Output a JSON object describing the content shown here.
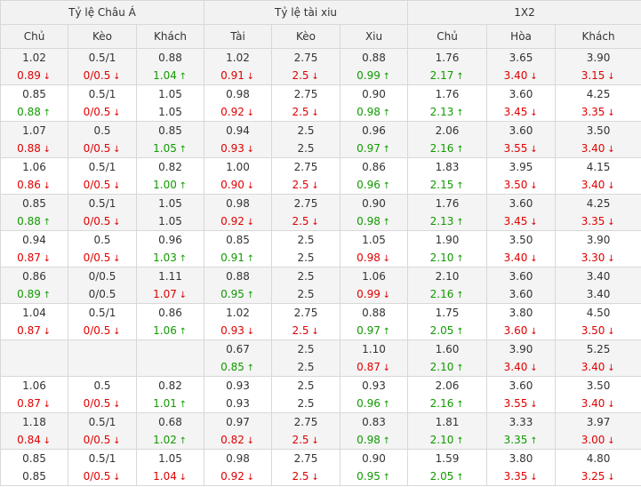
{
  "groups": [
    "Tỷ lệ Châu Á",
    "Tỷ lệ tài xiu",
    "1X2"
  ],
  "columns": [
    "Chủ",
    "Kèo",
    "Khách",
    "Tài",
    "Kèo",
    "Xiu",
    "Chủ",
    "Hòa",
    "Khách"
  ],
  "rows": [
    [
      [
        "1.02",
        "0.89",
        "d"
      ],
      [
        "0.5/1",
        "0/0.5",
        "d"
      ],
      [
        "0.88",
        "1.04",
        "u"
      ],
      [
        "1.02",
        "0.91",
        "d"
      ],
      [
        "2.75",
        "2.5",
        "d"
      ],
      [
        "0.88",
        "0.99",
        "u"
      ],
      [
        "1.76",
        "2.17",
        "u"
      ],
      [
        "3.65",
        "3.40",
        "d"
      ],
      [
        "3.90",
        "3.15",
        "d"
      ]
    ],
    [
      [
        "0.85",
        "0.88",
        "u"
      ],
      [
        "0.5/1",
        "0/0.5",
        "d"
      ],
      [
        "1.05",
        "1.05",
        ""
      ],
      [
        "0.98",
        "0.92",
        "d"
      ],
      [
        "2.75",
        "2.5",
        "d"
      ],
      [
        "0.90",
        "0.98",
        "u"
      ],
      [
        "1.76",
        "2.13",
        "u"
      ],
      [
        "3.60",
        "3.45",
        "d"
      ],
      [
        "4.25",
        "3.35",
        "d"
      ]
    ],
    [
      [
        "1.07",
        "0.88",
        "d"
      ],
      [
        "0.5",
        "0/0.5",
        "d"
      ],
      [
        "0.85",
        "1.05",
        "u"
      ],
      [
        "0.94",
        "0.93",
        "d"
      ],
      [
        "2.5",
        "2.5",
        ""
      ],
      [
        "0.96",
        "0.97",
        "u"
      ],
      [
        "2.06",
        "2.16",
        "u"
      ],
      [
        "3.60",
        "3.55",
        "d"
      ],
      [
        "3.50",
        "3.40",
        "d"
      ]
    ],
    [
      [
        "1.06",
        "0.86",
        "d"
      ],
      [
        "0.5/1",
        "0/0.5",
        "d"
      ],
      [
        "0.82",
        "1.00",
        "u"
      ],
      [
        "1.00",
        "0.90",
        "d"
      ],
      [
        "2.75",
        "2.5",
        "d"
      ],
      [
        "0.86",
        "0.96",
        "u"
      ],
      [
        "1.83",
        "2.15",
        "u"
      ],
      [
        "3.95",
        "3.50",
        "d"
      ],
      [
        "4.15",
        "3.40",
        "d"
      ]
    ],
    [
      [
        "0.85",
        "0.88",
        "u"
      ],
      [
        "0.5/1",
        "0/0.5",
        "d"
      ],
      [
        "1.05",
        "1.05",
        ""
      ],
      [
        "0.98",
        "0.92",
        "d"
      ],
      [
        "2.75",
        "2.5",
        "d"
      ],
      [
        "0.90",
        "0.98",
        "u"
      ],
      [
        "1.76",
        "2.13",
        "u"
      ],
      [
        "3.60",
        "3.45",
        "d"
      ],
      [
        "4.25",
        "3.35",
        "d"
      ]
    ],
    [
      [
        "0.94",
        "0.87",
        "d"
      ],
      [
        "0.5",
        "0/0.5",
        "d"
      ],
      [
        "0.96",
        "1.03",
        "u"
      ],
      [
        "0.85",
        "0.91",
        "u"
      ],
      [
        "2.5",
        "2.5",
        ""
      ],
      [
        "1.05",
        "0.98",
        "d"
      ],
      [
        "1.90",
        "2.10",
        "u"
      ],
      [
        "3.50",
        "3.40",
        "d"
      ],
      [
        "3.90",
        "3.30",
        "d"
      ]
    ],
    [
      [
        "0.86",
        "0.89",
        "u"
      ],
      [
        "0/0.5",
        "0/0.5",
        ""
      ],
      [
        "1.11",
        "1.07",
        "d"
      ],
      [
        "0.88",
        "0.95",
        "u"
      ],
      [
        "2.5",
        "2.5",
        ""
      ],
      [
        "1.06",
        "0.99",
        "d"
      ],
      [
        "2.10",
        "2.16",
        "u"
      ],
      [
        "3.60",
        "3.60",
        ""
      ],
      [
        "3.40",
        "3.40",
        ""
      ]
    ],
    [
      [
        "1.04",
        "0.87",
        "d"
      ],
      [
        "0.5/1",
        "0/0.5",
        "d"
      ],
      [
        "0.86",
        "1.06",
        "u"
      ],
      [
        "1.02",
        "0.93",
        "d"
      ],
      [
        "2.75",
        "2.5",
        "d"
      ],
      [
        "0.88",
        "0.97",
        "u"
      ],
      [
        "1.75",
        "2.05",
        "u"
      ],
      [
        "3.80",
        "3.60",
        "d"
      ],
      [
        "4.50",
        "3.50",
        "d"
      ]
    ],
    [
      [
        "",
        "",
        ""
      ],
      [
        "",
        "",
        ""
      ],
      [
        "",
        "",
        ""
      ],
      [
        "0.67",
        "0.85",
        "u"
      ],
      [
        "2.5",
        "2.5",
        ""
      ],
      [
        "1.10",
        "0.87",
        "d"
      ],
      [
        "1.60",
        "2.10",
        "u"
      ],
      [
        "3.90",
        "3.40",
        "d"
      ],
      [
        "5.25",
        "3.40",
        "d"
      ]
    ],
    [
      [
        "1.06",
        "0.87",
        "d"
      ],
      [
        "0.5",
        "0/0.5",
        "d"
      ],
      [
        "0.82",
        "1.01",
        "u"
      ],
      [
        "0.93",
        "0.93",
        ""
      ],
      [
        "2.5",
        "2.5",
        ""
      ],
      [
        "0.93",
        "0.96",
        "u"
      ],
      [
        "2.06",
        "2.16",
        "u"
      ],
      [
        "3.60",
        "3.55",
        "d"
      ],
      [
        "3.50",
        "3.40",
        "d"
      ]
    ],
    [
      [
        "1.18",
        "0.84",
        "d"
      ],
      [
        "0.5/1",
        "0/0.5",
        "d"
      ],
      [
        "0.68",
        "1.02",
        "u"
      ],
      [
        "0.97",
        "0.82",
        "d"
      ],
      [
        "2.75",
        "2.5",
        "d"
      ],
      [
        "0.83",
        "0.98",
        "u"
      ],
      [
        "1.81",
        "2.10",
        "u"
      ],
      [
        "3.33",
        "3.35",
        "u"
      ],
      [
        "3.97",
        "3.00",
        "d"
      ]
    ],
    [
      [
        "0.85",
        "0.85",
        ""
      ],
      [
        "0.5/1",
        "0/0.5",
        "d"
      ],
      [
        "1.05",
        "1.04",
        "d"
      ],
      [
        "0.98",
        "0.92",
        "d"
      ],
      [
        "2.75",
        "2.5",
        "d"
      ],
      [
        "0.90",
        "0.95",
        "u"
      ],
      [
        "1.59",
        "2.05",
        "u"
      ],
      [
        "3.80",
        "3.35",
        "d"
      ],
      [
        "4.80",
        "3.25",
        "d"
      ]
    ]
  ],
  "icons": {
    "up": "arrow-up-icon",
    "down": "arrow-down-icon"
  },
  "colors": {
    "up": "#119a00",
    "down": "#e00000",
    "header_bg": "#f2f2f2",
    "row_alt_bg": "#f4f4f4"
  }
}
